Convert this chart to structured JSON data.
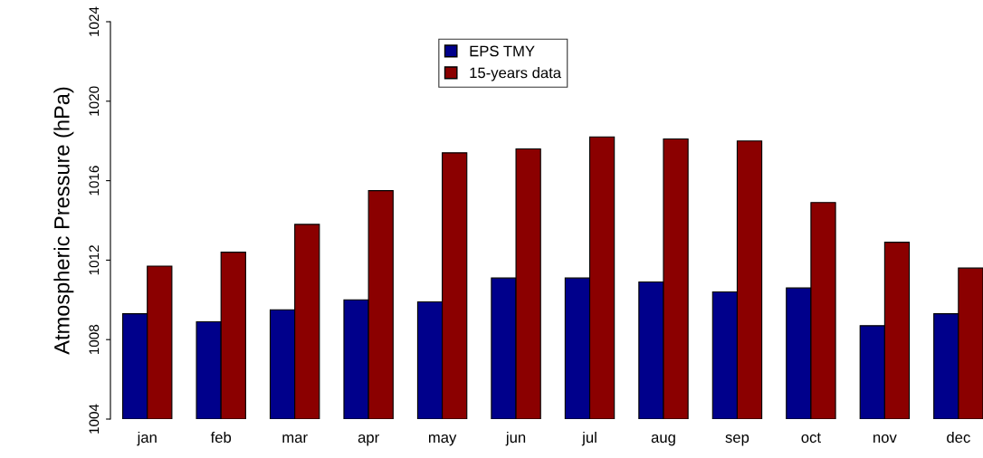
{
  "chart_data": {
    "type": "bar",
    "ylabel": "Atmospheric Pressure (hPa)",
    "categories": [
      "jan",
      "feb",
      "mar",
      "apr",
      "may",
      "jun",
      "jul",
      "aug",
      "sep",
      "oct",
      "nov",
      "dec"
    ],
    "series": [
      {
        "name": "EPS TMY",
        "color": "#00008b",
        "values": [
          1009.3,
          1008.9,
          1009.5,
          1010.0,
          1009.9,
          1011.1,
          1011.1,
          1010.9,
          1010.4,
          1010.6,
          1008.7,
          1009.3
        ]
      },
      {
        "name": "15-years data",
        "color": "#8b0000",
        "values": [
          1011.7,
          1012.4,
          1013.8,
          1015.5,
          1017.4,
          1017.6,
          1018.2,
          1018.1,
          1018.0,
          1014.9,
          1012.9,
          1011.6
        ]
      }
    ],
    "ylim": [
      1004,
      1024
    ],
    "yticks": [
      1004,
      1008,
      1012,
      1016,
      1020,
      1024
    ],
    "grid": false,
    "legend": "top"
  }
}
